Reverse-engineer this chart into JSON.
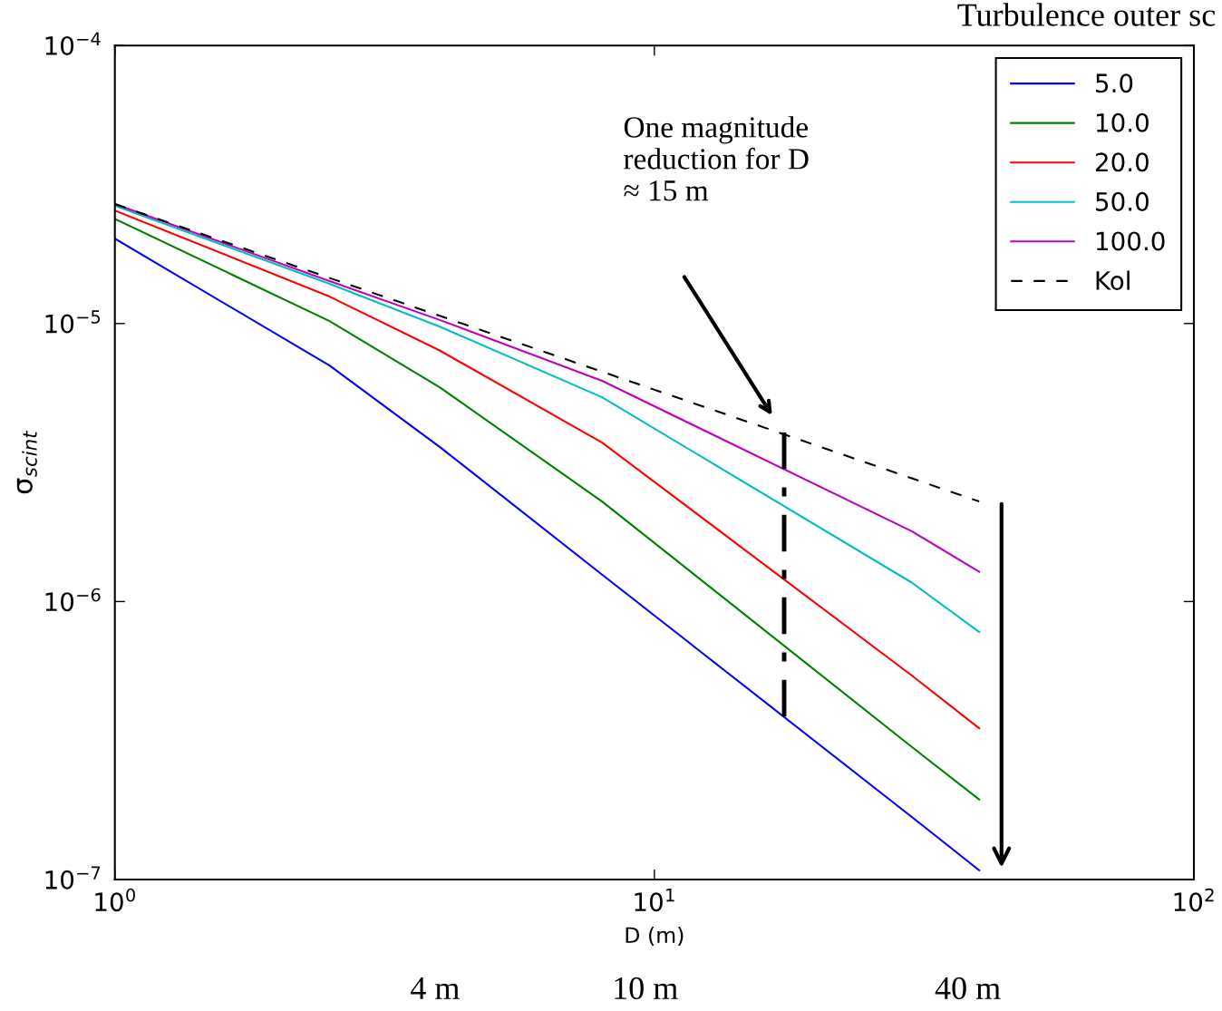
{
  "chart_data": {
    "type": "line",
    "xlabel": "D (m)",
    "ylabel": "σ$_{scint}$",
    "legend_title": "Turbulence outer sc",
    "log": "xy",
    "legend": "top right",
    "grid": false,
    "xlim": [
      1,
      100
    ],
    "xticks": [
      {
        "value": 1,
        "label": "10$^{0}$"
      },
      {
        "value": 10,
        "label": "10$^{1}$"
      },
      {
        "value": 100,
        "label": "10$^{2}$"
      }
    ],
    "ylim": [
      1e-07,
      0.0001
    ],
    "yticks": [
      {
        "value": 1e-07,
        "label": "10$^{−7}$"
      },
      {
        "value": 1e-06,
        "label": "10$^{−6}$"
      },
      {
        "value": 1e-05,
        "label": "10$^{−5}$"
      },
      {
        "value": 0.0001,
        "label": "10$^{−4}$"
      }
    ],
    "x": [
      1,
      2.5,
      4,
      8,
      30,
      40
    ],
    "series": [
      {
        "name": "5.0",
        "color": "#0000ff",
        "values": [
          2.02e-05,
          7.06e-06,
          3.6e-06,
          1.25e-06,
          1.68e-07,
          1.08e-07
        ]
      },
      {
        "name": "10.0",
        "color": "#008000",
        "values": [
          2.38e-05,
          1.02e-05,
          5.9e-06,
          2.29e-06,
          3e-07,
          1.94e-07
        ]
      },
      {
        "name": "20.0",
        "color": "#ff0000",
        "values": [
          2.55e-05,
          1.25e-05,
          8e-06,
          3.73e-06,
          5.42e-07,
          3.5e-07
        ]
      },
      {
        "name": "50.0",
        "color": "#00bfbf",
        "values": [
          2.65e-05,
          1.39e-05,
          9.75e-06,
          5.43e-06,
          1.17e-06,
          7.77e-07
        ]
      },
      {
        "name": "100.0",
        "color": "#bf00bf",
        "values": [
          2.69e-05,
          1.42e-05,
          1.03e-05,
          6.22e-06,
          1.79e-06,
          1.28e-06
        ]
      },
      {
        "name": "Kol",
        "color": "#000000",
        "line_style": "dashed",
        "x": [
          1,
          40
        ],
        "values": [
          2.69e-05,
          2.29e-06
        ]
      },
      {
        "color": "#000000",
        "line_style": "dashdot",
        "x": [
          17.4,
          17.4
        ],
        "values": [
          4.06e-06,
          3.86e-07
        ]
      }
    ],
    "annotations": [
      "One magnitude\nreduction for D\n≈ 15 m",
      "4 m",
      "10 m",
      "40 m"
    ]
  }
}
